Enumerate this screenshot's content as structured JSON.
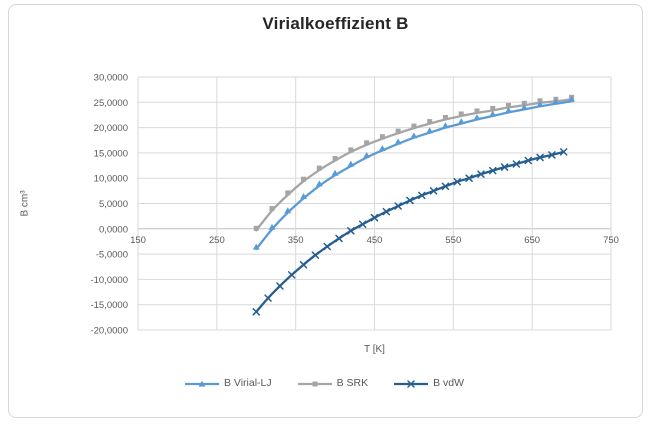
{
  "chart_data": {
    "type": "line",
    "title": "Virialkoeffizient B",
    "xlabel": "T [K]",
    "ylabel": "B cm³",
    "x_range": [
      150,
      750
    ],
    "y_range": [
      -20,
      30
    ],
    "grid": true,
    "legend_position": "bottom",
    "grid_color": "#d9d9d9",
    "axis_zero_color": "#bfbfbf",
    "x_ticks": [
      {
        "v": 150,
        "label": "150"
      },
      {
        "v": 250,
        "label": "250"
      },
      {
        "v": 350,
        "label": "350"
      },
      {
        "v": 450,
        "label": "450"
      },
      {
        "v": 550,
        "label": "550"
      },
      {
        "v": 650,
        "label": "650"
      },
      {
        "v": 750,
        "label": "750"
      }
    ],
    "y_ticks": [
      {
        "v": 30,
        "label": "30,0000"
      },
      {
        "v": 25,
        "label": "25,0000"
      },
      {
        "v": 20,
        "label": "20,0000"
      },
      {
        "v": 15,
        "label": "15,0000"
      },
      {
        "v": 10,
        "label": "10,0000"
      },
      {
        "v": 5,
        "label": "5,0000"
      },
      {
        "v": 0,
        "label": "0,0000"
      },
      {
        "v": -5,
        "label": "-5,0000"
      },
      {
        "v": -10,
        "label": "-10,0000"
      },
      {
        "v": -15,
        "label": "-15,0000"
      },
      {
        "v": -20,
        "label": "-20,0000"
      }
    ],
    "series": [
      {
        "id": "b-virial-lj",
        "name": "B Virial-LJ",
        "color": "#5B9BD5",
        "marker": "triangle",
        "x": [
          300,
          320,
          340,
          360,
          380,
          400,
          420,
          440,
          460,
          480,
          500,
          520,
          540,
          560,
          580,
          600,
          620,
          640,
          660,
          680,
          700
        ],
        "values": [
          -4.0,
          -0.1,
          3.2,
          6.0,
          8.5,
          10.6,
          12.4,
          14.1,
          15.5,
          16.8,
          18.0,
          19.0,
          20.0,
          20.8,
          21.6,
          22.3,
          23.0,
          23.6,
          24.2,
          24.7,
          25.2
        ]
      },
      {
        "id": "b-srk",
        "name": "B SRK",
        "color": "#A5A5A5",
        "marker": "square",
        "x": [
          300,
          320,
          340,
          360,
          380,
          400,
          420,
          440,
          460,
          480,
          500,
          520,
          540,
          560,
          580,
          600,
          620,
          640,
          660,
          680,
          700
        ],
        "values": [
          -0.3,
          3.6,
          6.7,
          9.4,
          11.6,
          13.5,
          15.2,
          16.6,
          17.8,
          18.9,
          19.9,
          20.8,
          21.6,
          22.3,
          22.9,
          23.4,
          24.0,
          24.4,
          24.9,
          25.2,
          25.6
        ]
      },
      {
        "id": "b-vdw",
        "name": "B vdW",
        "color": "#255E91",
        "marker": "x",
        "x": [
          300,
          315,
          330,
          345,
          360,
          375,
          390,
          405,
          420,
          435,
          450,
          465,
          480,
          495,
          510,
          525,
          540,
          555,
          570,
          585,
          600,
          615,
          630,
          645,
          660,
          675,
          690
        ],
        "values": [
          -16.4,
          -13.7,
          -11.3,
          -9.1,
          -7.1,
          -5.2,
          -3.5,
          -1.9,
          -0.4,
          0.9,
          2.2,
          3.4,
          4.5,
          5.6,
          6.6,
          7.5,
          8.4,
          9.3,
          10.0,
          10.8,
          11.5,
          12.2,
          12.8,
          13.5,
          14.1,
          14.6,
          15.2
        ]
      }
    ]
  }
}
